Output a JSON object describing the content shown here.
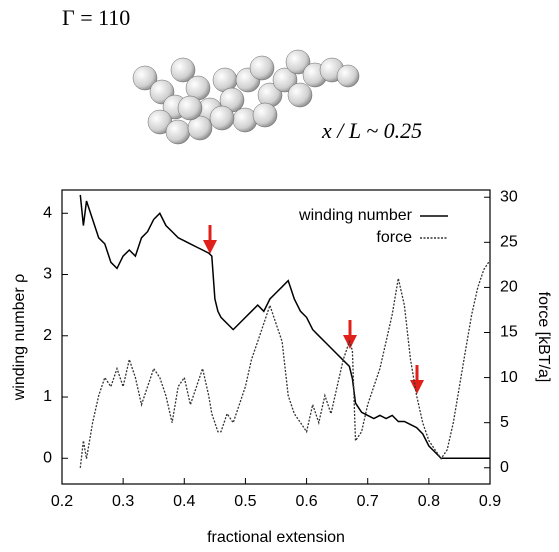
{
  "chart_data": {
    "type": "line",
    "annotations": [
      "Γ = 110",
      "x / L  ~ 0.25"
    ],
    "xlabel": "fractional extension",
    "ylabel": "winding number ρ",
    "y2label": "force [kBT/a]",
    "legend": "upper right",
    "x": [
      0.23,
      0.235,
      0.24,
      0.25,
      0.26,
      0.27,
      0.28,
      0.29,
      0.3,
      0.31,
      0.32,
      0.33,
      0.34,
      0.35,
      0.36,
      0.37,
      0.38,
      0.39,
      0.4,
      0.41,
      0.42,
      0.43,
      0.44,
      0.445,
      0.45,
      0.455,
      0.46,
      0.47,
      0.48,
      0.49,
      0.5,
      0.51,
      0.52,
      0.53,
      0.54,
      0.55,
      0.56,
      0.57,
      0.58,
      0.59,
      0.6,
      0.61,
      0.62,
      0.63,
      0.64,
      0.65,
      0.66,
      0.67,
      0.675,
      0.68,
      0.69,
      0.7,
      0.71,
      0.72,
      0.73,
      0.74,
      0.75,
      0.76,
      0.77,
      0.78,
      0.79,
      0.8,
      0.81,
      0.82,
      0.83,
      0.84,
      0.85,
      0.86,
      0.87,
      0.88,
      0.89,
      0.9
    ],
    "series": [
      {
        "name": "winding number",
        "color": "#000000",
        "values": [
          4.3,
          3.8,
          4.2,
          3.9,
          3.6,
          3.5,
          3.2,
          3.1,
          3.3,
          3.4,
          3.3,
          3.6,
          3.7,
          3.9,
          4.0,
          3.8,
          3.7,
          3.6,
          3.55,
          3.5,
          3.45,
          3.4,
          3.35,
          3.3,
          2.6,
          2.4,
          2.3,
          2.2,
          2.1,
          2.2,
          2.3,
          2.4,
          2.5,
          2.4,
          2.6,
          2.7,
          2.8,
          2.9,
          2.6,
          2.4,
          2.3,
          2.1,
          2.0,
          1.9,
          1.8,
          1.7,
          1.6,
          1.5,
          1.3,
          0.9,
          0.75,
          0.7,
          0.65,
          0.7,
          0.65,
          0.7,
          0.6,
          0.6,
          0.55,
          0.5,
          0.4,
          0.2,
          0.1,
          0,
          0,
          0,
          0,
          0,
          0,
          0,
          0,
          0
        ]
      },
      {
        "name": "force",
        "color": "#333333",
        "dashed": true,
        "axis": "y2",
        "values": [
          0,
          3,
          1,
          5,
          8,
          10,
          9,
          11,
          9,
          12,
          10,
          7,
          9,
          11,
          10,
          8,
          5,
          9,
          10,
          7,
          9,
          11,
          8,
          6,
          5,
          4,
          4,
          6,
          5,
          7,
          9,
          12,
          14,
          16,
          18,
          16,
          14,
          8,
          6,
          5,
          4,
          7,
          5,
          8,
          6,
          9,
          12,
          14,
          13,
          3,
          4,
          7,
          9,
          11,
          14,
          17,
          21,
          18,
          12,
          8,
          5,
          3,
          2,
          1,
          2,
          5,
          9,
          13,
          17,
          20,
          22,
          23
        ]
      }
    ],
    "xlim": [
      0.2,
      0.9
    ],
    "xticks": [
      0.2,
      0.3,
      0.4,
      0.5,
      0.6,
      0.7,
      0.8,
      0.9
    ],
    "ylim": [
      -0.42,
      4.38
    ],
    "yticks": [
      0,
      1,
      2,
      3,
      4
    ],
    "y2lim": [
      -1.8,
      30.8
    ],
    "y2ticks": [
      0,
      5,
      10,
      15,
      20,
      25,
      30
    ]
  }
}
